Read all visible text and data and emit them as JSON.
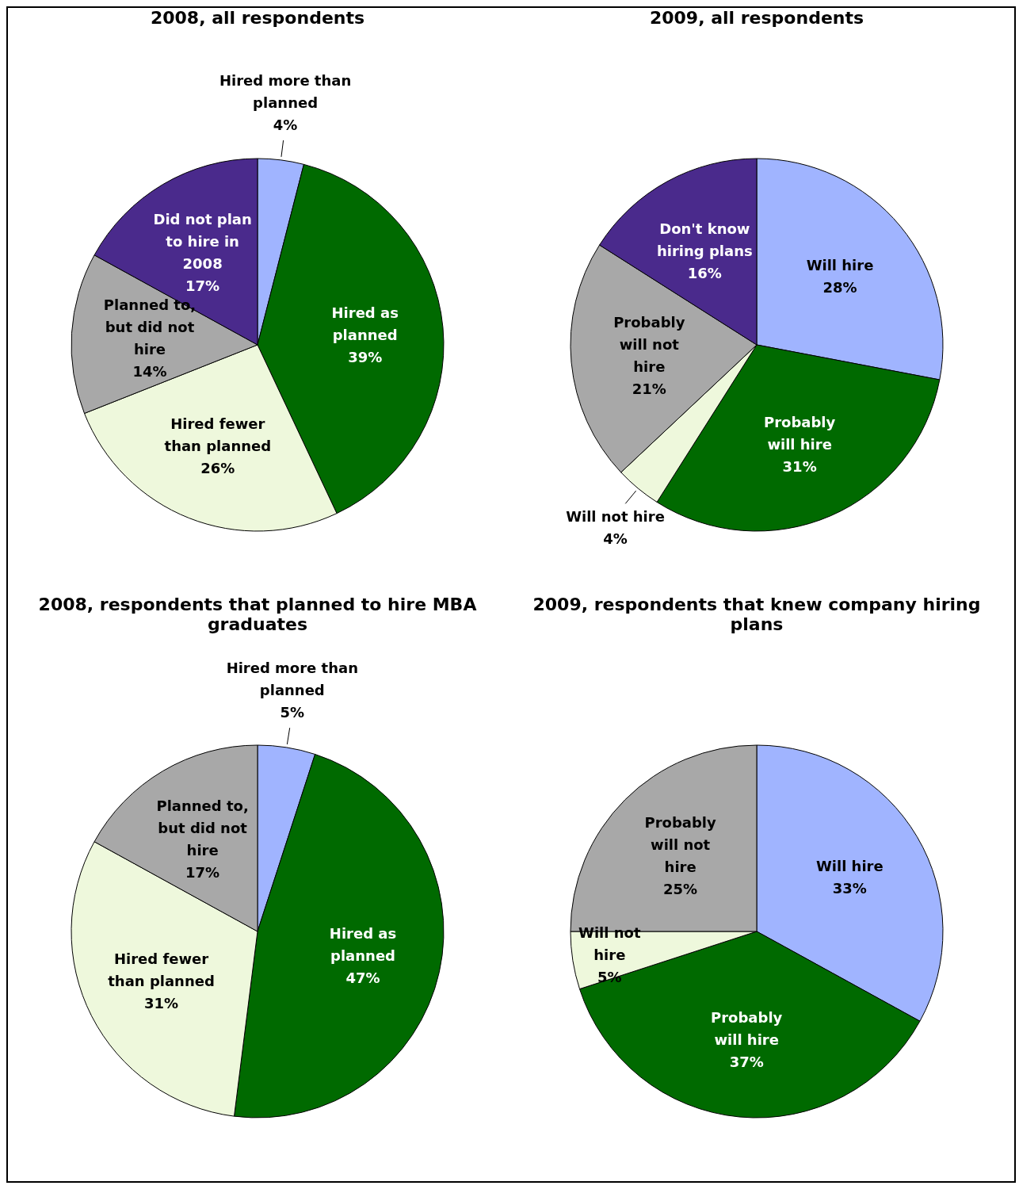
{
  "chart_data": [
    {
      "type": "pie",
      "title": "2008, all respondents",
      "categories": [
        "Hired more than planned",
        "Hired as planned",
        "Hired fewer than planned",
        "Planned to, but did not hire",
        "Did not plan to hire in 2008"
      ],
      "values": [
        4,
        39,
        26,
        14,
        17
      ],
      "value_labels": [
        "4%",
        "39%",
        "26%",
        "14%",
        "17%"
      ],
      "colors": [
        "#a0b4ff",
        "#006a00",
        "#eef8dc",
        "#a8a8a8",
        "#4a2a8c"
      ],
      "legend": false
    },
    {
      "type": "pie",
      "title": "2009, all respondents",
      "categories": [
        "Will hire",
        "Probably will hire",
        "Will not hire",
        "Probably will not hire",
        "Don't know hiring plans"
      ],
      "values": [
        28,
        31,
        4,
        21,
        16
      ],
      "value_labels": [
        "28%",
        "31%",
        "4%",
        "21%",
        "16%"
      ],
      "colors": [
        "#a0b4ff",
        "#006a00",
        "#eef8dc",
        "#a8a8a8",
        "#4a2a8c"
      ],
      "legend": false
    },
    {
      "type": "pie",
      "title": "2008, respondents that planned to hire MBA graduates",
      "categories": [
        "Hired more than planned",
        "Hired as planned",
        "Hired fewer than planned",
        "Planned to, but did not hire"
      ],
      "values": [
        5,
        47,
        31,
        17
      ],
      "value_labels": [
        "5%",
        "47%",
        "31%",
        "17%"
      ],
      "colors": [
        "#a0b4ff",
        "#006a00",
        "#eef8dc",
        "#a8a8a8"
      ],
      "legend": false
    },
    {
      "type": "pie",
      "title": "2009, respondents that knew company hiring plans",
      "categories": [
        "Will hire",
        "Probably will hire",
        "Will not hire",
        "Probably will not hire"
      ],
      "values": [
        33,
        37,
        5,
        25
      ],
      "value_labels": [
        "33%",
        "37%",
        "5%",
        "25%"
      ],
      "colors": [
        "#a0b4ff",
        "#006a00",
        "#eef8dc",
        "#a8a8a8"
      ],
      "legend": false
    }
  ]
}
